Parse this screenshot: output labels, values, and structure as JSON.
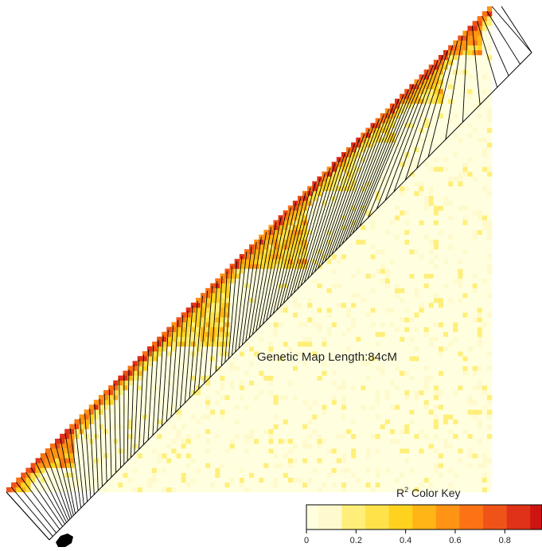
{
  "chart_data": {
    "type": "heatmap",
    "subtype": "linkage-disequilibrium-triangle",
    "marker_count": 100,
    "colorscale": [
      "#ffffe0",
      "#fffacd",
      "#ffef7a",
      "#ffe24a",
      "#ffd21f",
      "#ffb515",
      "#ff9414",
      "#fb7315",
      "#f05318",
      "#e03218",
      "#cc1410"
    ],
    "annotation": "Genetic Map Length:84cM",
    "color_key": {
      "title": "R",
      "title_superscript": "2",
      "title_suffix": " Color Key",
      "range": [
        0,
        0.95
      ],
      "ticks": [
        {
          "value": 0,
          "label": "0"
        },
        {
          "value": 0.2,
          "label": "0.2"
        },
        {
          "value": 0.4,
          "label": "0.4"
        },
        {
          "value": 0.6,
          "label": "0.6"
        },
        {
          "value": 0.8,
          "label": "0.8"
        }
      ]
    },
    "ld_blocks": [
      {
        "from": 0.0,
        "to": 0.05,
        "r2": 0.35
      },
      {
        "from": 0.05,
        "to": 0.14,
        "r2": 0.55
      },
      {
        "from": 0.14,
        "to": 0.18,
        "r2": 0.3
      },
      {
        "from": 0.3,
        "to": 0.46,
        "r2": 0.4
      },
      {
        "from": 0.46,
        "to": 0.62,
        "r2": 0.5
      },
      {
        "from": 0.62,
        "to": 0.72,
        "r2": 0.3
      },
      {
        "from": 0.72,
        "to": 0.8,
        "r2": 0.3
      },
      {
        "from": 0.8,
        "to": 0.9,
        "r2": 0.45
      },
      {
        "from": 0.9,
        "to": 0.98,
        "r2": 0.55
      }
    ],
    "map_positions_cM": [
      0,
      0.6,
      1.2,
      1.8,
      2.3,
      2.7,
      3.0,
      3.3,
      3.6,
      3.9,
      4.2,
      4.5,
      5.0,
      5.5,
      6.0,
      6.6,
      7.2,
      7.8,
      8.5,
      9.2,
      10.0,
      10.8,
      11.6,
      12.4,
      13.0,
      13.6,
      14.2,
      14.8,
      15.6,
      16.4,
      17.2,
      18.0,
      18.8,
      19.6,
      20.4,
      21.2,
      22.0,
      22.8,
      23.6,
      24.4,
      25.2,
      26.0,
      27.0,
      28.0,
      29.0,
      30.0,
      30.6,
      31.2,
      31.8,
      32.4,
      33.0,
      33.6,
      34.2,
      34.8,
      35.4,
      36.0,
      36.6,
      37.2,
      37.8,
      38.4,
      39.0,
      39.6,
      40.2,
      40.8,
      41.4,
      42.0,
      42.6,
      43.2,
      43.8,
      44.4,
      45.0,
      45.6,
      46.2,
      46.8,
      47.4,
      48.0,
      48.6,
      49.2,
      49.8,
      50.4,
      51.0,
      51.6,
      52.2,
      52.8,
      53.4,
      54.0,
      55.5,
      57.0,
      58.5,
      60.0,
      62.0,
      64.0,
      66.0,
      69.0,
      72.0,
      75.0,
      78.0,
      80.0,
      82.0,
      84.0
    ]
  }
}
